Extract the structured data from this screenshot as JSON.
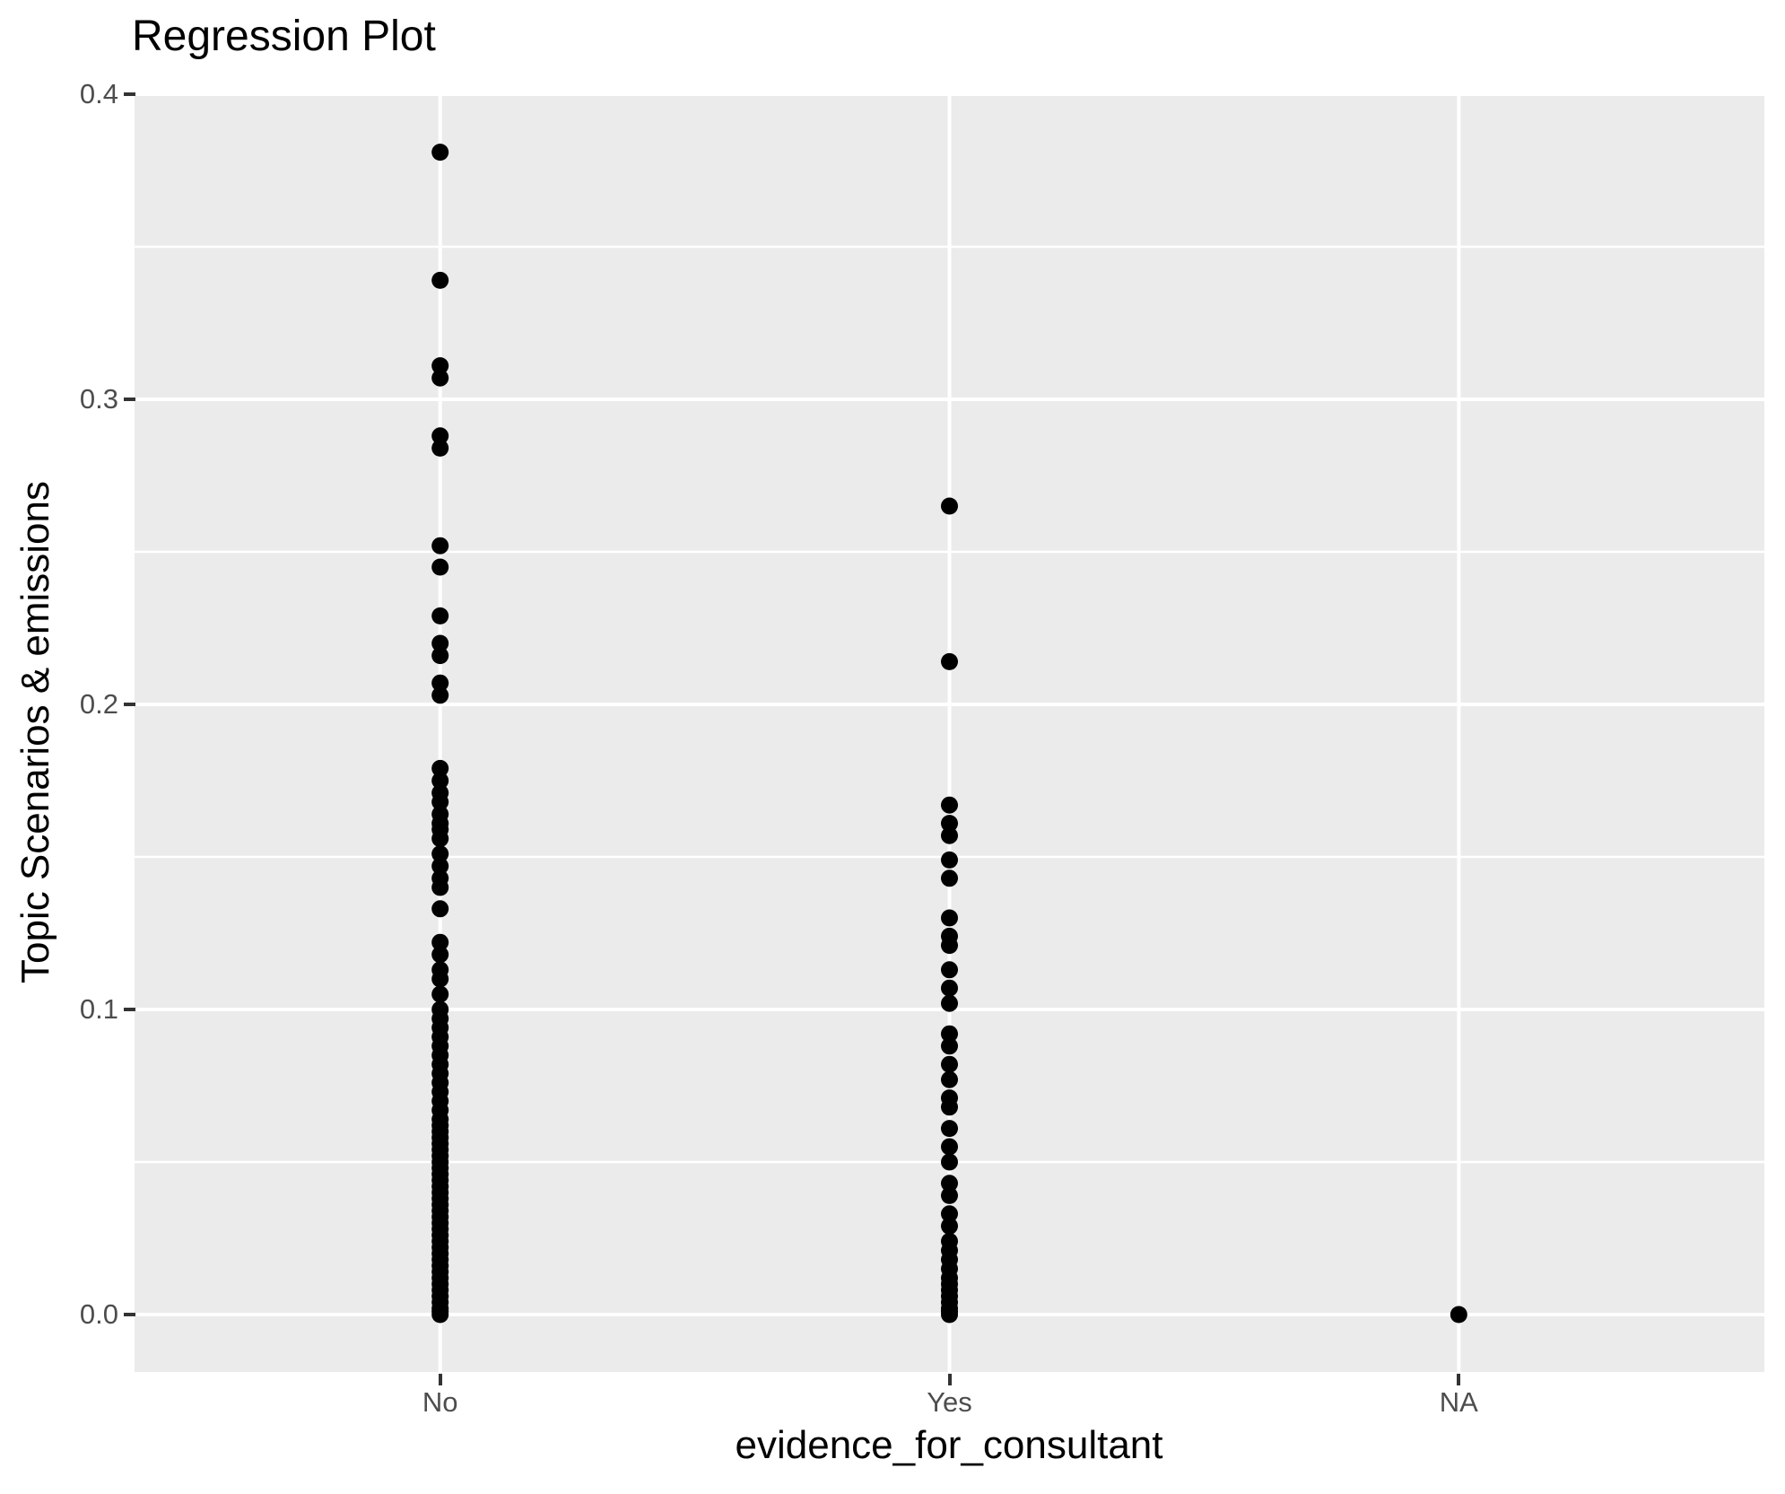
{
  "chart_data": {
    "type": "scatter",
    "title": "Regression Plot",
    "xlabel": "evidence_for_consultant",
    "ylabel": "Topic Scenarios & emissions",
    "categories": [
      "No",
      "Yes",
      "NA"
    ],
    "y_ticks": [
      0.0,
      0.1,
      0.2,
      0.3,
      0.4
    ],
    "y_tick_labels": [
      "0.0",
      "0.1",
      "0.2",
      "0.3",
      "0.4"
    ],
    "y_minor_ticks": [
      0.05,
      0.15,
      0.25,
      0.35
    ],
    "ylim": [
      -0.019,
      0.401
    ],
    "grid": "on",
    "legend": "none",
    "series": [
      {
        "name": "No",
        "values": [
          0.381,
          0.339,
          0.311,
          0.307,
          0.288,
          0.284,
          0.252,
          0.245,
          0.229,
          0.22,
          0.216,
          0.207,
          0.203,
          0.179,
          0.175,
          0.171,
          0.168,
          0.164,
          0.161,
          0.159,
          0.156,
          0.151,
          0.147,
          0.143,
          0.14,
          0.133,
          0.122,
          0.118,
          0.113,
          0.11,
          0.105,
          0.1,
          0.097,
          0.094,
          0.091,
          0.088,
          0.085,
          0.082,
          0.079,
          0.076,
          0.073,
          0.07,
          0.067,
          0.064,
          0.062,
          0.06,
          0.058,
          0.056,
          0.054,
          0.052,
          0.05,
          0.048,
          0.046,
          0.044,
          0.042,
          0.04,
          0.038,
          0.036,
          0.034,
          0.032,
          0.03,
          0.028,
          0.026,
          0.024,
          0.022,
          0.02,
          0.018,
          0.016,
          0.014,
          0.012,
          0.01,
          0.008,
          0.006,
          0.004,
          0.002,
          0.001,
          0.0
        ]
      },
      {
        "name": "Yes",
        "values": [
          0.265,
          0.214,
          0.167,
          0.161,
          0.157,
          0.149,
          0.143,
          0.13,
          0.124,
          0.121,
          0.113,
          0.107,
          0.102,
          0.092,
          0.088,
          0.082,
          0.077,
          0.071,
          0.068,
          0.061,
          0.055,
          0.05,
          0.043,
          0.039,
          0.033,
          0.029,
          0.024,
          0.021,
          0.018,
          0.015,
          0.012,
          0.01,
          0.008,
          0.006,
          0.004,
          0.002,
          0.001,
          0.0
        ]
      },
      {
        "name": "NA",
        "values": [
          0.0
        ]
      }
    ],
    "colors": {
      "point": "#000000",
      "panel_background": "#EBEBEB",
      "gridline": "#FFFFFF",
      "tick_label": "#4D4D4D",
      "tick_mark": "#333333",
      "axis_title": "#000000",
      "title": "#000000",
      "page_background": "#FFFFFF"
    }
  }
}
